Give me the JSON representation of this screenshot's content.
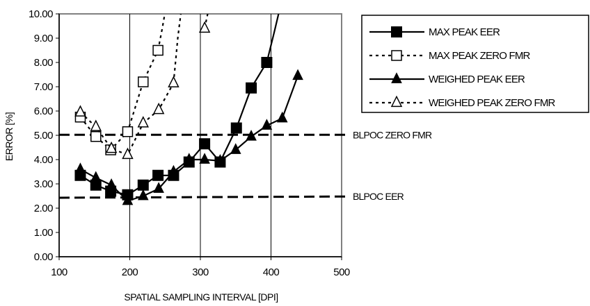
{
  "chart_data": {
    "type": "line",
    "xlabel": "SPATIAL SAMPLING INTERVAL [DPI]",
    "ylabel": "ERROR [%]",
    "xlim": [
      100,
      500
    ],
    "ylim": [
      0,
      10
    ],
    "x_ticks": [
      "100",
      "200",
      "300",
      "400",
      "500"
    ],
    "y_ticks": [
      "0.00",
      "1.00",
      "2.00",
      "3.00",
      "4.00",
      "5.00",
      "6.00",
      "7.00",
      "8.00",
      "9.00",
      "10.00"
    ],
    "grid": "vertical",
    "legend_position": "right",
    "series": [
      {
        "name": "MAX PEAK EER",
        "line": "solid",
        "marker": "square-filled",
        "points": [
          [
            130,
            3.35
          ],
          [
            152,
            2.95
          ],
          [
            173,
            2.7
          ],
          [
            197,
            2.55
          ],
          [
            219,
            2.95
          ],
          [
            240,
            3.35
          ],
          [
            262,
            3.35
          ],
          [
            284,
            3.9
          ],
          [
            306,
            4.65
          ],
          [
            328,
            3.9
          ],
          [
            351,
            5.3
          ],
          [
            372,
            6.95
          ],
          [
            394,
            8.0
          ]
        ],
        "extension": [
          [
            394,
            8.0
          ],
          [
            405,
            9.3
          ],
          [
            414,
            10.4
          ]
        ]
      },
      {
        "name": "MAX PEAK ZERO FMR",
        "line": "dotted",
        "marker": "square-open",
        "points": [
          [
            130,
            5.75
          ],
          [
            152,
            4.95
          ],
          [
            173,
            4.4
          ],
          [
            197,
            5.15
          ],
          [
            219,
            7.2
          ],
          [
            240,
            8.5
          ]
        ],
        "extension": [
          [
            240,
            8.5
          ],
          [
            246,
            9.4
          ],
          [
            252,
            10.4
          ]
        ]
      },
      {
        "name": "WEIGHED PEAK EER",
        "line": "solid",
        "marker": "triangle-filled",
        "points": [
          [
            130,
            3.6
          ],
          [
            152,
            3.25
          ],
          [
            174,
            2.95
          ],
          [
            197,
            2.3
          ],
          [
            219,
            2.5
          ],
          [
            241,
            2.8
          ],
          [
            262,
            3.5
          ],
          [
            284,
            4.0
          ],
          [
            306,
            4.0
          ],
          [
            328,
            3.95
          ],
          [
            350,
            4.4
          ],
          [
            372,
            4.95
          ],
          [
            394,
            5.4
          ],
          [
            416,
            5.7
          ],
          [
            438,
            7.45
          ]
        ]
      },
      {
        "name": "WEIGHED PEAK ZERO FMR",
        "line": "dotted",
        "marker": "triangle-open",
        "points": [
          [
            130,
            5.95
          ],
          [
            152,
            5.35
          ],
          [
            174,
            4.45
          ],
          [
            197,
            4.2
          ],
          [
            219,
            5.5
          ],
          [
            241,
            6.05
          ],
          [
            262,
            7.15
          ],
          [
            306,
            9.4
          ]
        ],
        "extension": [
          [
            262,
            7.15
          ],
          [
            268,
            9.0
          ],
          [
            274,
            10.4
          ]
        ],
        "break_before_last": true,
        "last_extension": [
          [
            306,
            9.4
          ],
          [
            311,
            10.1
          ],
          [
            314,
            10.4
          ]
        ]
      }
    ],
    "reference_lines": [
      {
        "label": "BLPOC ZERO FMR",
        "y_start": 5.02,
        "y_end": 5.02,
        "style": "dashed"
      },
      {
        "label": "BLPOC EER",
        "y_start": 2.43,
        "y_end": 2.48,
        "style": "dashed"
      }
    ]
  }
}
